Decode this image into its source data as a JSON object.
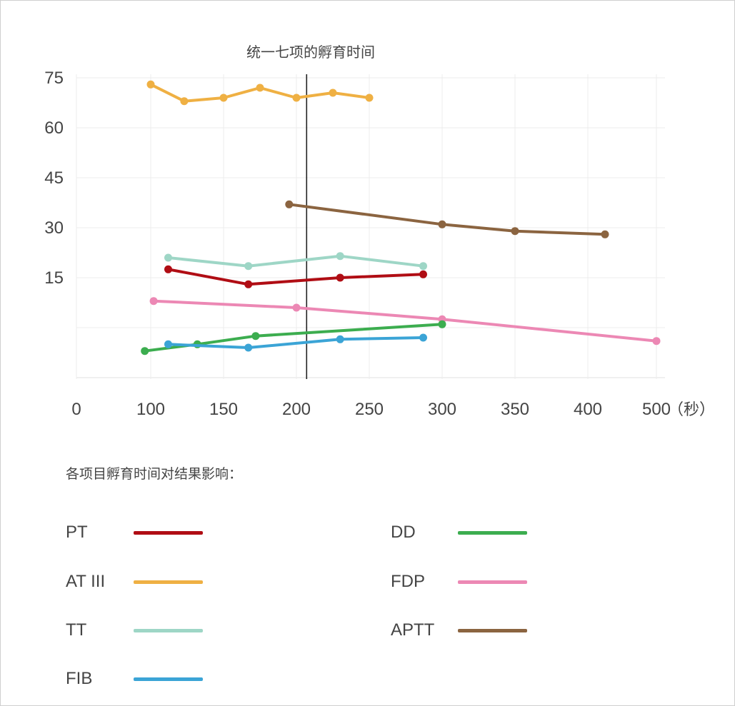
{
  "chart_data": {
    "type": "line",
    "title": "统一七项的孵育时间",
    "x_tick_labels": [
      "0",
      "100",
      "150",
      "200",
      "250",
      "300",
      "350",
      "400",
      "500"
    ],
    "x_unit": "（秒）",
    "y_tick_labels": [
      "75",
      "60",
      "45",
      "30",
      "15"
    ],
    "ylim": [
      0,
      75
    ],
    "grid": true,
    "reference_line_x": 207,
    "series": [
      {
        "name": "AT III",
        "color": "#EFB043",
        "x": [
          100,
          123,
          150,
          175,
          200,
          225,
          250
        ],
        "y": [
          73,
          68,
          69,
          72,
          69,
          70.5,
          69
        ]
      },
      {
        "name": "APTT",
        "color": "#8B6440",
        "x": [
          195,
          300,
          350,
          425
        ],
        "y": [
          37,
          31,
          29,
          28
        ]
      },
      {
        "name": "TT",
        "color": "#9ED6C6",
        "x": [
          112,
          167,
          230,
          287
        ],
        "y": [
          21,
          18.5,
          21.5,
          18.5
        ]
      },
      {
        "name": "PT",
        "color": "#B00D14",
        "x": [
          112,
          167,
          230,
          287
        ],
        "y": [
          17.5,
          13,
          15,
          16
        ]
      },
      {
        "name": "FDP",
        "color": "#EC88B4",
        "x": [
          102,
          200,
          300,
          500
        ],
        "y": [
          8,
          6,
          2.5,
          -4
        ]
      },
      {
        "name": "DD",
        "color": "#3CAD4F",
        "x": [
          92,
          132,
          172,
          300
        ],
        "y": [
          -7,
          -5,
          -2.5,
          1
        ]
      },
      {
        "name": "FIB",
        "color": "#3BA4D6",
        "x": [
          112,
          167,
          230,
          287
        ],
        "y": [
          -5,
          -6,
          -3.5,
          -3
        ]
      }
    ]
  },
  "legend": {
    "title": "各项目孵育时间对结果影响：",
    "items": [
      {
        "label": "PT",
        "color": "#B00D14"
      },
      {
        "label": "AT III",
        "color": "#EFB043"
      },
      {
        "label": "TT",
        "color": "#9ED6C6"
      },
      {
        "label": "FIB",
        "color": "#3BA4D6"
      },
      {
        "label": "DD",
        "color": "#3CAD4F"
      },
      {
        "label": "FDP",
        "color": "#EC88B4"
      },
      {
        "label": "APTT",
        "color": "#8B6440"
      }
    ]
  }
}
